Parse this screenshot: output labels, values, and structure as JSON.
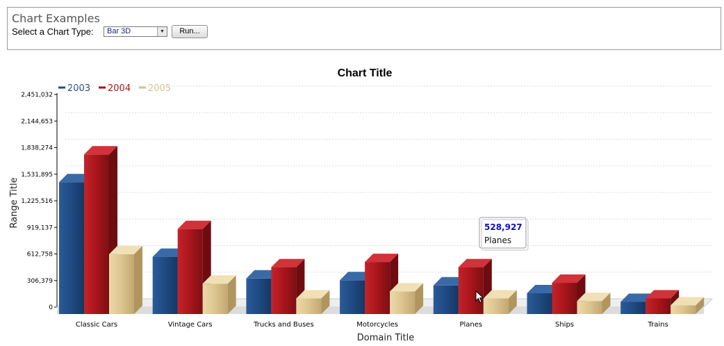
{
  "panel": {
    "title": "Chart Examples",
    "type_label": "Select a Chart Type:",
    "selected_type": "Bar 3D",
    "run_label": "Run..."
  },
  "chart_data": {
    "type": "bar",
    "title": "Chart Title",
    "xlabel": "Domain Title",
    "ylabel": "Range Title",
    "categories": [
      "Classic Cars",
      "Vintage Cars",
      "Trucks and Buses",
      "Motorcycles",
      "Planes",
      "Ships",
      "Trains"
    ],
    "y_ticks": [
      "0",
      "306,379",
      "612,758",
      "919,137",
      "1,225,516",
      "1,531,895",
      "1,838,274",
      "2,144,653",
      "2,451,032"
    ],
    "ylim": [
      0,
      2451032
    ],
    "legend_position": "top-left",
    "series": [
      {
        "name": "2003",
        "color": "#1f4a82",
        "values": [
          1440000,
          580000,
          330000,
          310000,
          250000,
          160000,
          60000
        ]
      },
      {
        "name": "2004",
        "color": "#a8151b",
        "values": [
          1760000,
          900000,
          460000,
          520000,
          460000,
          280000,
          100000
        ]
      },
      {
        "name": "2005",
        "color": "#d8c08c",
        "values": [
          610000,
          270000,
          100000,
          180000,
          100000,
          70000,
          20000
        ]
      }
    ],
    "tooltip": {
      "value": "528,927",
      "label": "Planes"
    }
  },
  "icons": {
    "cursor": "mouse-pointer-icon",
    "dropdown": "chevron-down-icon"
  }
}
